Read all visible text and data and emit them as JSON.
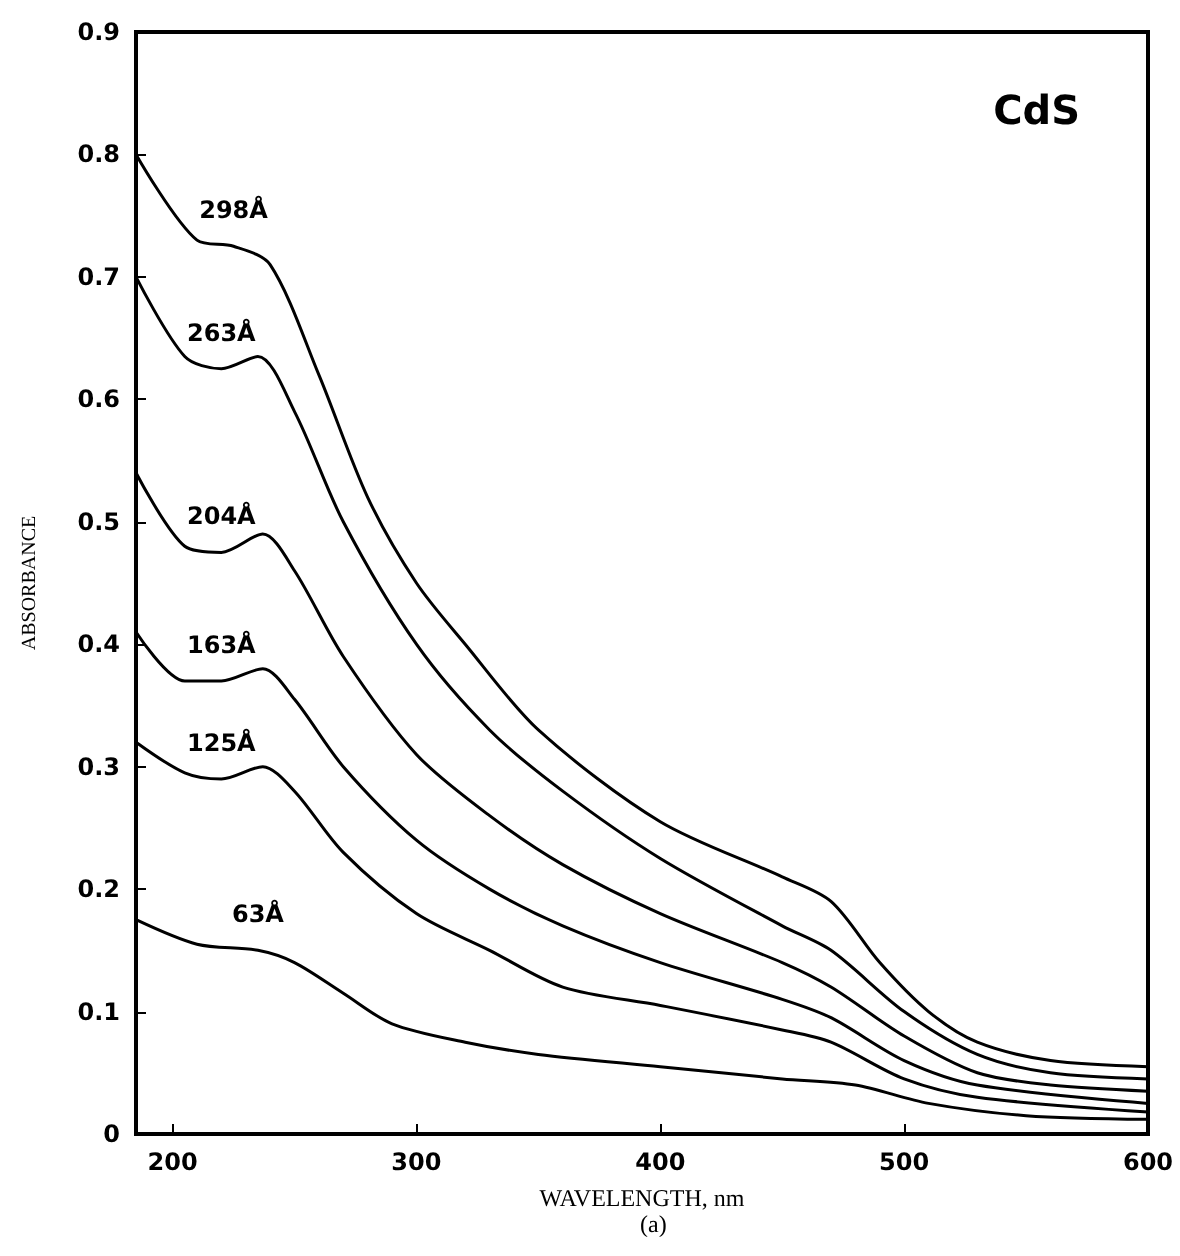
{
  "chart_data": {
    "type": "line",
    "title": "CdS",
    "xlabel": "WAVELENGTH, nm",
    "ylabel": "ABSORBANCE",
    "annotations": [
      "(a)"
    ],
    "xlim": [
      185,
      600
    ],
    "xticks": [
      200,
      300,
      400,
      500,
      600
    ],
    "ylim": [
      0,
      0.9
    ],
    "yticks": [
      0,
      0.1,
      0.2,
      0.3,
      0.4,
      0.5,
      0.6,
      0.7,
      0.8,
      0.9
    ],
    "grid": false,
    "legend": false,
    "marker": "none",
    "line_style": "solid",
    "series": [
      {
        "name": "298Å",
        "color": "#000000",
        "x": [
          185,
          210,
          225,
          240,
          260,
          280,
          300,
          320,
          350,
          400,
          450,
          470,
          490,
          510,
          530,
          560,
          600
        ],
        "values": [
          0.8,
          0.73,
          0.725,
          0.71,
          0.62,
          0.52,
          0.45,
          0.4,
          0.33,
          0.255,
          0.21,
          0.19,
          0.14,
          0.1,
          0.075,
          0.06,
          0.055
        ]
      },
      {
        "name": "263Å",
        "color": "#000000",
        "x": [
          185,
          205,
          220,
          235,
          250,
          270,
          300,
          330,
          360,
          400,
          450,
          470,
          500,
          530,
          560,
          600
        ],
        "values": [
          0.7,
          0.635,
          0.625,
          0.635,
          0.59,
          0.5,
          0.4,
          0.33,
          0.28,
          0.225,
          0.17,
          0.15,
          0.1,
          0.065,
          0.05,
          0.045
        ]
      },
      {
        "name": "204Å",
        "color": "#000000",
        "x": [
          185,
          205,
          220,
          237,
          250,
          270,
          300,
          330,
          360,
          400,
          450,
          470,
          500,
          530,
          560,
          600
        ],
        "values": [
          0.54,
          0.48,
          0.475,
          0.49,
          0.46,
          0.39,
          0.31,
          0.26,
          0.22,
          0.18,
          0.14,
          0.12,
          0.08,
          0.05,
          0.04,
          0.035
        ]
      },
      {
        "name": "163Å",
        "color": "#000000",
        "x": [
          185,
          205,
          220,
          237,
          250,
          270,
          300,
          330,
          360,
          400,
          450,
          470,
          500,
          530,
          600
        ],
        "values": [
          0.41,
          0.37,
          0.37,
          0.38,
          0.355,
          0.3,
          0.24,
          0.2,
          0.17,
          0.14,
          0.11,
          0.095,
          0.06,
          0.04,
          0.025
        ]
      },
      {
        "name": "125Å",
        "color": "#000000",
        "x": [
          185,
          205,
          220,
          237,
          250,
          270,
          300,
          330,
          360,
          400,
          450,
          470,
          500,
          530,
          600
        ],
        "values": [
          0.32,
          0.295,
          0.29,
          0.3,
          0.28,
          0.23,
          0.18,
          0.15,
          0.12,
          0.105,
          0.085,
          0.075,
          0.045,
          0.03,
          0.018
        ]
      },
      {
        "name": "63Å",
        "color": "#000000",
        "x": [
          185,
          210,
          235,
          250,
          270,
          290,
          320,
          350,
          400,
          450,
          480,
          510,
          550,
          600
        ],
        "values": [
          0.175,
          0.155,
          0.15,
          0.14,
          0.115,
          0.09,
          0.075,
          0.065,
          0.055,
          0.045,
          0.04,
          0.025,
          0.015,
          0.012
        ]
      }
    ]
  }
}
